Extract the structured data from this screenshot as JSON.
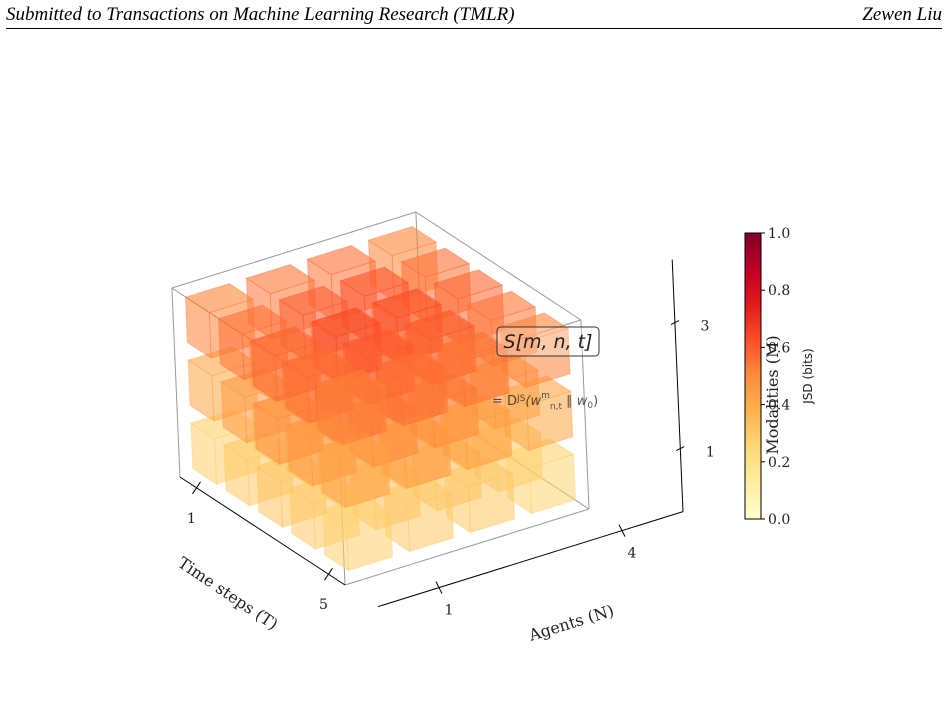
{
  "header": {
    "left": "Submitted to Transactions on Machine Learning Research (TMLR)",
    "right": "Zewen Liu"
  },
  "chart_data": {
    "type": "voxel3d",
    "x_label": "Agents (N)",
    "y_label": "Time steps (T)",
    "z_label": "Modalities (M)",
    "xticks": [
      1,
      4
    ],
    "yticks": [
      1,
      5
    ],
    "zticks": [
      1,
      3
    ],
    "values": [
      [
        [
          0.28,
          0.3,
          0.32,
          0.3,
          0.28
        ],
        [
          0.3,
          0.34,
          0.36,
          0.33,
          0.3
        ],
        [
          0.3,
          0.35,
          0.37,
          0.34,
          0.31
        ],
        [
          0.27,
          0.3,
          0.32,
          0.3,
          0.27
        ]
      ],
      [
        [
          0.42,
          0.46,
          0.5,
          0.47,
          0.43
        ],
        [
          0.45,
          0.55,
          0.62,
          0.55,
          0.46
        ],
        [
          0.46,
          0.56,
          0.6,
          0.54,
          0.45
        ],
        [
          0.42,
          0.47,
          0.5,
          0.46,
          0.42
        ]
      ],
      [
        [
          0.52,
          0.56,
          0.58,
          0.56,
          0.52
        ],
        [
          0.55,
          0.6,
          0.64,
          0.6,
          0.55
        ],
        [
          0.56,
          0.62,
          0.63,
          0.6,
          0.55
        ],
        [
          0.52,
          0.56,
          0.58,
          0.55,
          0.52
        ]
      ]
    ],
    "colorbar": {
      "label": "JSD (bits)",
      "lim": [
        0,
        1
      ],
      "ticks": [
        {
          "value": 0,
          "label": "0.0"
        },
        {
          "value": 0.2,
          "label": "0.2"
        },
        {
          "value": 0.4,
          "label": "0.4"
        },
        {
          "value": 0.6,
          "label": "0.6"
        },
        {
          "value": 0.8,
          "label": "0.8"
        },
        {
          "value": 1,
          "label": "1.0"
        }
      ]
    },
    "annotation": {
      "box": "S[m, n, t]",
      "formula": [
        "= D",
        "JS",
        "(w",
        "m",
        "n,t",
        " ∥ w",
        "0",
        ")"
      ]
    }
  }
}
